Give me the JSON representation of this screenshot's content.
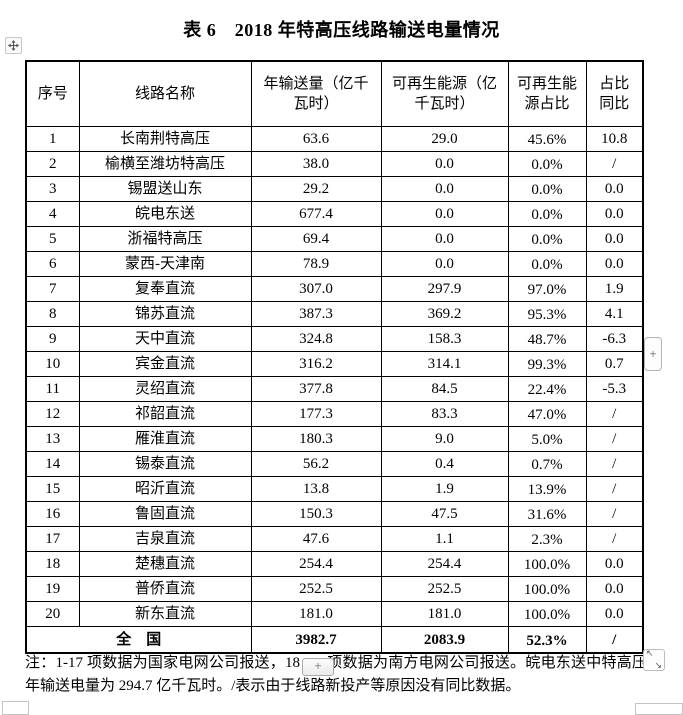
{
  "title": "表 6　2018 年特高压线路输送电量情况",
  "table": {
    "headers": [
      "序号",
      "线路名称",
      "年输送量（亿千瓦时）",
      "可再生能源（亿千瓦时）",
      "可再生能源占比",
      "占比同比"
    ],
    "rows": [
      [
        "1",
        "长南荆特高压",
        "63.6",
        "29.0",
        "45.6%",
        "10.8"
      ],
      [
        "2",
        "榆横至潍坊特高压",
        "38.0",
        "0.0",
        "0.0%",
        "/"
      ],
      [
        "3",
        "锡盟送山东",
        "29.2",
        "0.0",
        "0.0%",
        "0.0"
      ],
      [
        "4",
        "皖电东送",
        "677.4",
        "0.0",
        "0.0%",
        "0.0"
      ],
      [
        "5",
        "浙福特高压",
        "69.4",
        "0.0",
        "0.0%",
        "0.0"
      ],
      [
        "6",
        "蒙西-天津南",
        "78.9",
        "0.0",
        "0.0%",
        "0.0"
      ],
      [
        "7",
        "复奉直流",
        "307.0",
        "297.9",
        "97.0%",
        "1.9"
      ],
      [
        "8",
        "锦苏直流",
        "387.3",
        "369.2",
        "95.3%",
        "4.1"
      ],
      [
        "9",
        "天中直流",
        "324.8",
        "158.3",
        "48.7%",
        "-6.3"
      ],
      [
        "10",
        "宾金直流",
        "316.2",
        "314.1",
        "99.3%",
        "0.7"
      ],
      [
        "11",
        "灵绍直流",
        "377.8",
        "84.5",
        "22.4%",
        "-5.3"
      ],
      [
        "12",
        "祁韶直流",
        "177.3",
        "83.3",
        "47.0%",
        "/"
      ],
      [
        "13",
        "雁淮直流",
        "180.3",
        "9.0",
        "5.0%",
        "/"
      ],
      [
        "14",
        "锡泰直流",
        "56.2",
        "0.4",
        "0.7%",
        "/"
      ],
      [
        "15",
        "昭沂直流",
        "13.8",
        "1.9",
        "13.9%",
        "/"
      ],
      [
        "16",
        "鲁固直流",
        "150.3",
        "47.5",
        "31.6%",
        "/"
      ],
      [
        "17",
        "吉泉直流",
        "47.6",
        "1.1",
        "2.3%",
        "/"
      ],
      [
        "18",
        "楚穗直流",
        "254.4",
        "254.4",
        "100.0%",
        "0.0"
      ],
      [
        "19",
        "普侨直流",
        "252.5",
        "252.5",
        "100.0%",
        "0.0"
      ],
      [
        "20",
        "新东直流",
        "181.0",
        "181.0",
        "100.0%",
        "0.0"
      ]
    ],
    "total_row": {
      "label": "全　国",
      "values": [
        "3982.7",
        "2083.9",
        "52.3%",
        "/"
      ]
    }
  },
  "note": {
    "prefix": "注：1-17 项数据为国家电网公司报送，18",
    "suffix": "项数据为南方电网公司报送。皖电东送中特高压年输送电量为 294.7 亿千瓦时。/表示由于线路新投产等原因没有同比数据。"
  },
  "handles": {
    "inline_plus_label": "+",
    "side_plus_label": "+",
    "resize_arrows": [
      "↖",
      "↘"
    ]
  },
  "colors": {
    "table_border": "#000000",
    "text": "#000000",
    "handle_border": "#b8b8b8",
    "handle_bg": "#fafafa"
  }
}
